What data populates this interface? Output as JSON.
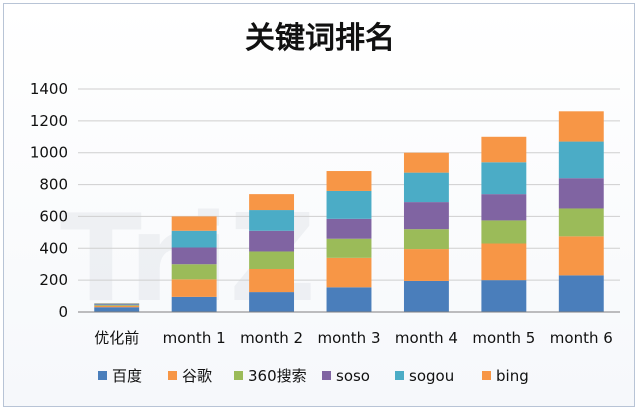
{
  "chart_data": {
    "type": "bar",
    "stacked": true,
    "title": "关键词排名",
    "categories": [
      "优化前",
      "month 1",
      "month 2",
      "month 3",
      "month 4",
      "month 5",
      "month 6"
    ],
    "ylim": [
      0,
      1400
    ],
    "yticks": [
      0,
      200,
      400,
      600,
      800,
      1000,
      1200,
      1400
    ],
    "grid": true,
    "legend_position": "bottom",
    "series": [
      {
        "name": "百度",
        "color": "#4a7ebb",
        "values": [
          30,
          95,
          125,
          155,
          195,
          200,
          230
        ]
      },
      {
        "name": "谷歌",
        "color": "#f79646",
        "values": [
          8,
          110,
          145,
          185,
          200,
          230,
          245
        ]
      },
      {
        "name": "360搜索",
        "color": "#9bbb59",
        "values": [
          5,
          95,
          110,
          120,
          125,
          145,
          175
        ]
      },
      {
        "name": "soso",
        "color": "#8064a2",
        "values": [
          5,
          105,
          130,
          125,
          170,
          165,
          190
        ]
      },
      {
        "name": "sogou",
        "color": "#4bacc6",
        "values": [
          5,
          105,
          130,
          175,
          185,
          200,
          230
        ]
      },
      {
        "name": "bing",
        "color": "#f79646",
        "values": [
          2,
          90,
          100,
          125,
          125,
          160,
          190
        ]
      }
    ]
  }
}
